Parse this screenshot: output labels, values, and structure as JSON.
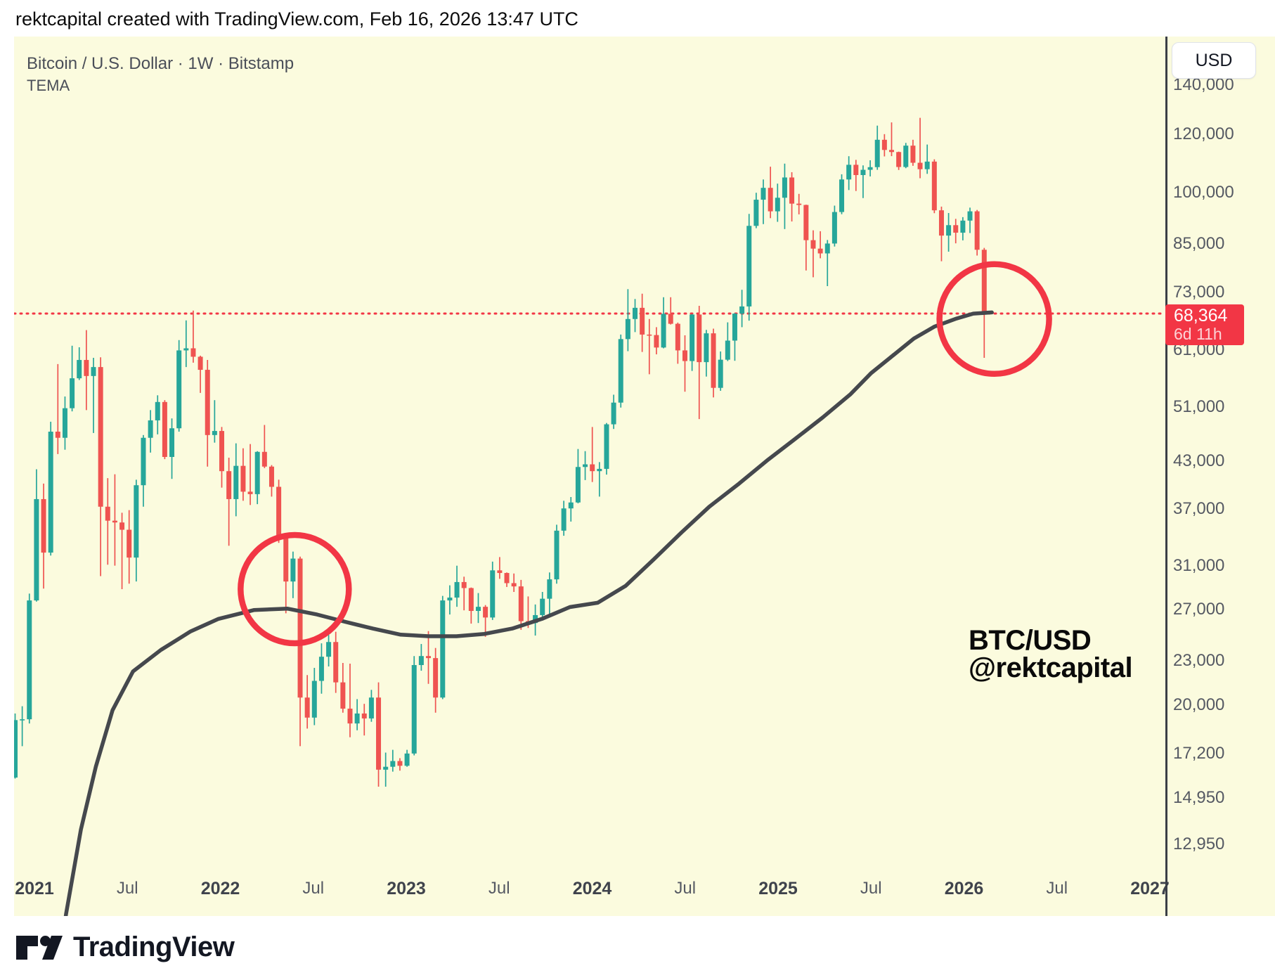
{
  "header": {
    "attribution": "rektcapital created with TradingView.com, Feb 16, 2026 13:47 UTC"
  },
  "chart": {
    "symbol_title": "Bitcoin / U.S. Dollar · 1W · Bitstamp",
    "indicator_label": "TEMA",
    "watermark_line1": "BTC/USD",
    "watermark_line2": "@rektcapital",
    "currency_button": "USD",
    "price_badge": {
      "price": "68,364",
      "countdown": "6d 11h"
    },
    "colors": {
      "background": "#FBFBDE",
      "up_candle": "#26A69A",
      "down_candle": "#EF5350",
      "accent_red": "#F23645",
      "tema_line": "#45484D",
      "axis_line": "#3A3E46",
      "label_text": "#555963"
    },
    "y_axis_labels": [
      {
        "label": "140,000",
        "value": 140000
      },
      {
        "label": "120,000",
        "value": 120000
      },
      {
        "label": "100,000",
        "value": 100000
      },
      {
        "label": "85,000",
        "value": 85000
      },
      {
        "label": "73,000",
        "value": 73000
      },
      {
        "label": "61,000",
        "value": 61000
      },
      {
        "label": "51,000",
        "value": 51000
      },
      {
        "label": "43,000",
        "value": 43000
      },
      {
        "label": "37,000",
        "value": 37000
      },
      {
        "label": "31,000",
        "value": 31000
      },
      {
        "label": "27,000",
        "value": 27000
      },
      {
        "label": "23,000",
        "value": 23000
      },
      {
        "label": "20,000",
        "value": 20000
      },
      {
        "label": "17,200",
        "value": 17200
      },
      {
        "label": "14,950",
        "value": 14950
      },
      {
        "label": "12,950",
        "value": 12950
      }
    ],
    "x_axis_labels": [
      {
        "label": "2021",
        "t": 2021,
        "major": true
      },
      {
        "label": "Jul",
        "t": 2021.5,
        "major": false
      },
      {
        "label": "2022",
        "t": 2022,
        "major": true
      },
      {
        "label": "Jul",
        "t": 2022.5,
        "major": false
      },
      {
        "label": "2023",
        "t": 2023,
        "major": true
      },
      {
        "label": "Jul",
        "t": 2023.5,
        "major": false
      },
      {
        "label": "2024",
        "t": 2024,
        "major": true
      },
      {
        "label": "Jul",
        "t": 2024.5,
        "major": false
      },
      {
        "label": "2025",
        "t": 2025,
        "major": true
      },
      {
        "label": "Jul",
        "t": 2025.5,
        "major": false
      },
      {
        "label": "2026",
        "t": 2026,
        "major": true
      },
      {
        "label": "Jul",
        "t": 2026.5,
        "major": false
      },
      {
        "label": "2027",
        "t": 2027,
        "major": true
      }
    ]
  },
  "chart_data": {
    "type": "candlestick",
    "symbol": "BTC/USD",
    "timeframe": "1W",
    "exchange": "Bitstamp",
    "scale": "log",
    "last_price": 68364,
    "countdown": "6d 11h",
    "price_line": 68364,
    "start_date": "2020-11-23",
    "candle_interval_days": 14,
    "x_range_years": [
      2020.85,
      2027.08
    ],
    "y_range_price": [
      10300,
      150000
    ],
    "ohlc": [
      [
        15950,
        19500,
        15900,
        19100
      ],
      [
        19100,
        19950,
        17600,
        19150
      ],
      [
        19150,
        28400,
        18900,
        27800
      ],
      [
        27800,
        41950,
        27700,
        38200
      ],
      [
        38200,
        40100,
        28850,
        32300
      ],
      [
        32300,
        48700,
        32000,
        47200
      ],
      [
        47200,
        58350,
        44000,
        46300
      ],
      [
        46300,
        52700,
        44600,
        50800
      ],
      [
        50800,
        61800,
        50300,
        55800
      ],
      [
        55800,
        61500,
        55500,
        59100
      ],
      [
        59100,
        64900,
        50500,
        56200
      ],
      [
        56200,
        59500,
        47000,
        57800
      ],
      [
        57800,
        59600,
        30000,
        37300
      ],
      [
        37300,
        40800,
        31100,
        35700
      ],
      [
        35700,
        41300,
        31000,
        35500
      ],
      [
        35500,
        36600,
        28800,
        34700
      ],
      [
        34700,
        36900,
        29300,
        31800
      ],
      [
        31800,
        40600,
        29500,
        39900
      ],
      [
        39900,
        46700,
        37300,
        46300
      ],
      [
        46300,
        50500,
        44200,
        48900
      ],
      [
        48900,
        52900,
        46800,
        51800
      ],
      [
        51800,
        52100,
        43300,
        43600
      ],
      [
        43600,
        49200,
        40700,
        47700
      ],
      [
        47700,
        62900,
        47200,
        60900
      ],
      [
        60900,
        66900,
        57800,
        61300
      ],
      [
        61300,
        69000,
        58600,
        59700
      ],
      [
        59700,
        59900,
        53300,
        57300
      ],
      [
        57300,
        59100,
        42300,
        46700
      ],
      [
        46700,
        52100,
        45600,
        47300
      ],
      [
        47300,
        47900,
        39600,
        41700
      ],
      [
        41700,
        43500,
        33000,
        38200
      ],
      [
        38200,
        45500,
        36200,
        42400
      ],
      [
        42400,
        44800,
        38000,
        39100
      ],
      [
        39100,
        45400,
        37500,
        38800
      ],
      [
        38800,
        44400,
        37600,
        44300
      ],
      [
        44300,
        48200,
        42100,
        42300
      ],
      [
        42300,
        42500,
        38500,
        39700
      ],
      [
        39700,
        40600,
        33300,
        34000
      ],
      [
        34000,
        34300,
        26700,
        29500
      ],
      [
        29500,
        32400,
        28000,
        31700
      ],
      [
        31700,
        31900,
        17600,
        20500
      ],
      [
        20500,
        22000,
        18600,
        19250
      ],
      [
        19250,
        22500,
        18800,
        21600
      ],
      [
        21600,
        24300,
        20750,
        23300
      ],
      [
        23300,
        24950,
        22600,
        24400
      ],
      [
        24400,
        25200,
        20800,
        21500
      ],
      [
        21500,
        22850,
        19550,
        19800
      ],
      [
        19800,
        22800,
        18100,
        18900
      ],
      [
        18900,
        20400,
        18500,
        19500
      ],
      [
        19500,
        20100,
        18200,
        19200
      ],
      [
        19200,
        21000,
        19000,
        20500
      ],
      [
        20500,
        21500,
        15500,
        16350
      ],
      [
        16350,
        17250,
        15500,
        16500
      ],
      [
        16500,
        17400,
        16250,
        16800
      ],
      [
        16800,
        16950,
        16300,
        16550
      ],
      [
        16550,
        17400,
        16500,
        17200
      ],
      [
        17200,
        23350,
        17100,
        22700
      ],
      [
        22700,
        24250,
        22300,
        23350
      ],
      [
        23350,
        25250,
        21400,
        23200
      ],
      [
        23200,
        23950,
        19550,
        20500
      ],
      [
        20500,
        28200,
        20400,
        27800
      ],
      [
        27800,
        29150,
        26600,
        28050
      ],
      [
        28050,
        31000,
        27250,
        29450
      ],
      [
        29450,
        29950,
        26950,
        28900
      ],
      [
        28900,
        28950,
        25850,
        26900
      ],
      [
        26900,
        28450,
        25900,
        27250
      ],
      [
        27250,
        27400,
        24800,
        26350
      ],
      [
        26350,
        31400,
        26150,
        30550
      ],
      [
        30550,
        31850,
        29750,
        30300
      ],
      [
        30300,
        30350,
        29000,
        29350
      ],
      [
        29350,
        30250,
        28550,
        29050
      ],
      [
        29050,
        29650,
        25350,
        26050
      ],
      [
        26050,
        28150,
        25500,
        25900
      ],
      [
        25900,
        27450,
        24900,
        26550
      ],
      [
        26550,
        28550,
        26100,
        27950
      ],
      [
        27950,
        30350,
        26550,
        29700
      ],
      [
        29700,
        35250,
        29300,
        34600
      ],
      [
        34600,
        38000,
        34050,
        37100
      ],
      [
        37100,
        38450,
        35600,
        37800
      ],
      [
        37800,
        44700,
        37700,
        42250
      ],
      [
        42250,
        44400,
        40550,
        42600
      ],
      [
        42600,
        47900,
        40300,
        41700
      ],
      [
        41700,
        42900,
        38500,
        42000
      ],
      [
        42000,
        48500,
        41250,
        48300
      ],
      [
        48300,
        53000,
        47600,
        51700
      ],
      [
        51700,
        64000,
        50900,
        63100
      ],
      [
        63100,
        73800,
        60750,
        67200
      ],
      [
        67200,
        71550,
        64500,
        69600
      ],
      [
        69600,
        72750,
        60600,
        64000
      ],
      [
        64000,
        67200,
        56500,
        63900
      ],
      [
        63900,
        65500,
        60150,
        61450
      ],
      [
        61450,
        71950,
        61300,
        68300
      ],
      [
        68300,
        71950,
        66050,
        66200
      ],
      [
        66200,
        66450,
        58400,
        60900
      ],
      [
        60900,
        63850,
        53500,
        58900
      ],
      [
        58900,
        68250,
        57100,
        68150
      ],
      [
        68150,
        70050,
        49100,
        58700
      ],
      [
        58700,
        64950,
        56100,
        64250
      ],
      [
        64250,
        65200,
        52550,
        54150
      ],
      [
        54150,
        60700,
        53650,
        59150
      ],
      [
        59150,
        66500,
        58900,
        62800
      ],
      [
        62800,
        68450,
        58950,
        68350
      ],
      [
        68350,
        73650,
        65500,
        69900
      ],
      [
        69900,
        93450,
        66850,
        90000
      ],
      [
        90000,
        99850,
        89350,
        97700
      ],
      [
        97700,
        104100,
        90500,
        101400
      ],
      [
        101400,
        108350,
        92200,
        94200
      ],
      [
        94200,
        102750,
        91150,
        98300
      ],
      [
        98300,
        109400,
        89100,
        104750
      ],
      [
        104750,
        106500,
        91250,
        96500
      ],
      [
        96500,
        99500,
        93300,
        96100
      ],
      [
        96100,
        96200,
        78250,
        86050
      ],
      [
        86050,
        88750,
        76600,
        83800
      ],
      [
        83800,
        88500,
        81300,
        82550
      ],
      [
        82550,
        86100,
        74500,
        85150
      ],
      [
        85150,
        95900,
        84350,
        94000
      ],
      [
        94000,
        105800,
        93350,
        104100
      ],
      [
        104100,
        111980,
        100700,
        109000
      ],
      [
        109000,
        110700,
        100400,
        105550
      ],
      [
        105550,
        108800,
        98200,
        107300
      ],
      [
        107300,
        110550,
        105100,
        108200
      ],
      [
        108200,
        123250,
        107300,
        117900
      ],
      [
        117900,
        120000,
        111900,
        114200
      ],
      [
        114200,
        124500,
        112000,
        113450
      ],
      [
        113450,
        113600,
        107250,
        108250
      ],
      [
        108250,
        116750,
        107850,
        115750
      ],
      [
        115750,
        117900,
        108650,
        109700
      ],
      [
        109700,
        126300,
        104500,
        107500
      ],
      [
        107500,
        116150,
        105950,
        110100
      ],
      [
        110100,
        110900,
        93650,
        94500
      ],
      [
        94500,
        95600,
        80550,
        87300
      ],
      [
        87300,
        93700,
        83000,
        90200
      ],
      [
        90200,
        92000,
        85200,
        88100
      ],
      [
        88100,
        92500,
        86000,
        91500
      ],
      [
        91500,
        95300,
        88000,
        94200
      ],
      [
        94200,
        94600,
        82000,
        83500
      ],
      [
        83500,
        84000,
        59500,
        68364
      ]
    ],
    "tema": [
      [
        2021.13,
        8800
      ],
      [
        2021.17,
        10400
      ],
      [
        2021.25,
        13550
      ],
      [
        2021.33,
        16500
      ],
      [
        2021.42,
        19700
      ],
      [
        2021.53,
        22250
      ],
      [
        2021.68,
        23800
      ],
      [
        2021.84,
        25230
      ],
      [
        2021.99,
        26240
      ],
      [
        2022.18,
        26970
      ],
      [
        2022.36,
        27100
      ],
      [
        2022.52,
        26600
      ],
      [
        2022.67,
        26000
      ],
      [
        2022.82,
        25450
      ],
      [
        2022.97,
        24970
      ],
      [
        2023.12,
        24850
      ],
      [
        2023.27,
        24850
      ],
      [
        2023.42,
        25030
      ],
      [
        2023.57,
        25450
      ],
      [
        2023.73,
        26240
      ],
      [
        2023.88,
        27230
      ],
      [
        2024.03,
        27600
      ],
      [
        2024.18,
        29100
      ],
      [
        2024.33,
        31600
      ],
      [
        2024.48,
        34400
      ],
      [
        2024.63,
        37300
      ],
      [
        2024.79,
        40100
      ],
      [
        2024.94,
        43100
      ],
      [
        2025.09,
        46100
      ],
      [
        2025.24,
        49350
      ],
      [
        2025.39,
        53100
      ],
      [
        2025.5,
        56700
      ],
      [
        2025.62,
        60000
      ],
      [
        2025.73,
        63200
      ],
      [
        2025.84,
        65600
      ],
      [
        2025.96,
        67300
      ],
      [
        2026.05,
        68350
      ],
      [
        2026.15,
        68600
      ]
    ],
    "annotations": {
      "circles": [
        {
          "t": 2022.4,
          "price": 28800,
          "r": 77
        },
        {
          "t": 2026.163,
          "price": 67200,
          "r": 78
        }
      ]
    }
  },
  "footer": {
    "brand": "TradingView"
  }
}
